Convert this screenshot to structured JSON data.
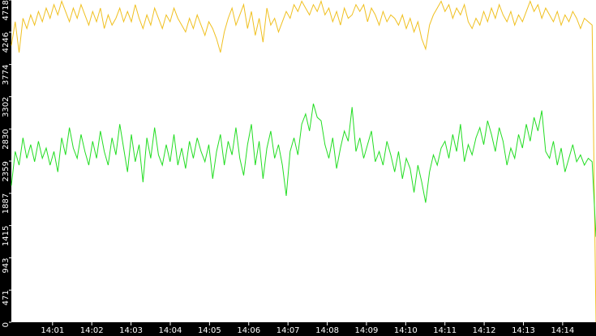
{
  "chart_data": {
    "type": "line",
    "xlim": [
      839.95,
      854.85
    ],
    "xticks": [
      {
        "value": 841,
        "label": "14:01"
      },
      {
        "value": 842,
        "label": "14:02"
      },
      {
        "value": 843,
        "label": "14:03"
      },
      {
        "value": 844,
        "label": "14:04"
      },
      {
        "value": 845,
        "label": "14:05"
      },
      {
        "value": 846,
        "label": "14:06"
      },
      {
        "value": 847,
        "label": "14:07"
      },
      {
        "value": 848,
        "label": "14:08"
      },
      {
        "value": 849,
        "label": "14:09"
      },
      {
        "value": 850,
        "label": "14:10"
      },
      {
        "value": 851,
        "label": "14:11"
      },
      {
        "value": 852,
        "label": "14:12"
      },
      {
        "value": 853,
        "label": "14:13"
      },
      {
        "value": 854,
        "label": "14:14"
      }
    ],
    "ylim": [
      0,
      4718
    ],
    "yticks": [
      0,
      471,
      943,
      1415,
      1887,
      2359,
      2830,
      3302,
      3774,
      4246,
      4718
    ],
    "series": [
      {
        "color": "#f0c020",
        "values": [
          4050,
          4400,
          3950,
          4450,
          4300,
          4500,
          4350,
          4550,
          4400,
          4600,
          4450,
          4650,
          4500,
          4700,
          4550,
          4400,
          4600,
          4450,
          4650,
          4500,
          4350,
          4550,
          4400,
          4600,
          4300,
          4500,
          4350,
          4450,
          4600,
          4400,
          4550,
          4400,
          4650,
          4450,
          4300,
          4500,
          4350,
          4600,
          4450,
          4300,
          4500,
          4400,
          4600,
          4450,
          4350,
          4250,
          4450,
          4300,
          4500,
          4350,
          4200,
          4400,
          4300,
          4150,
          3950,
          4250,
          4450,
          4600,
          4350,
          4500,
          4650,
          4300,
          4550,
          4200,
          4450,
          4100,
          4600,
          4350,
          4450,
          4250,
          4400,
          4550,
          4450,
          4650,
          4550,
          4700,
          4600,
          4500,
          4650,
          4550,
          4700,
          4500,
          4600,
          4400,
          4550,
          4350,
          4600,
          4450,
          4500,
          4650,
          4550,
          4650,
          4400,
          4600,
          4500,
          4350,
          4550,
          4400,
          4500,
          4450,
          4350,
          4500,
          4300,
          4450,
          4250,
          4400,
          4150,
          4000,
          4350,
          4500,
          4600,
          4700,
          4550,
          4650,
          4450,
          4600,
          4500,
          4650,
          4400,
          4300,
          4450,
          4350,
          4550,
          4400,
          4600,
          4450,
          4650,
          4500,
          4400,
          4550,
          4350,
          4500,
          4400,
          4550,
          4700,
          4550,
          4650,
          4450,
          4600,
          4500,
          4400,
          4550,
          4350,
          4500,
          4400,
          4550,
          4450,
          4300,
          4450,
          4400,
          4350,
          0
        ]
      },
      {
        "color": "#22dd22",
        "values": [
          2000,
          2500,
          2300,
          2700,
          2400,
          2600,
          2350,
          2650,
          2400,
          2550,
          2300,
          2500,
          2200,
          2700,
          2450,
          2850,
          2550,
          2400,
          2750,
          2500,
          2300,
          2650,
          2400,
          2800,
          2500,
          2300,
          2700,
          2450,
          2900,
          2550,
          2200,
          2750,
          2350,
          2600,
          2050,
          2700,
          2400,
          2850,
          2450,
          2300,
          2600,
          2350,
          2750,
          2300,
          2550,
          2250,
          2650,
          2400,
          2700,
          2500,
          2350,
          2600,
          2100,
          2500,
          2750,
          2300,
          2650,
          2450,
          2850,
          2400,
          2150,
          2600,
          2900,
          2300,
          2650,
          2100,
          2550,
          2800,
          2400,
          2600,
          2300,
          1850,
          2500,
          2700,
          2450,
          2900,
          3050,
          2800,
          3200,
          3000,
          2950,
          2600,
          2400,
          2700,
          2250,
          2550,
          2800,
          2650,
          3150,
          2500,
          2700,
          2400,
          2600,
          2800,
          2350,
          2500,
          2300,
          2650,
          2450,
          2200,
          2500,
          2100,
          2400,
          2250,
          1900,
          2300,
          2050,
          1750,
          2200,
          2450,
          2300,
          2550,
          2650,
          2400,
          2750,
          2500,
          2900,
          2350,
          2600,
          2450,
          2700,
          2850,
          2600,
          2950,
          2750,
          2500,
          2850,
          2650,
          2300,
          2550,
          2400,
          2750,
          2550,
          2900,
          2650,
          3000,
          2800,
          3100,
          2500,
          2400,
          2650,
          2300,
          2550,
          2200,
          2400,
          2600,
          2350,
          2450,
          2300,
          2400,
          2350,
          1250
        ]
      }
    ]
  }
}
